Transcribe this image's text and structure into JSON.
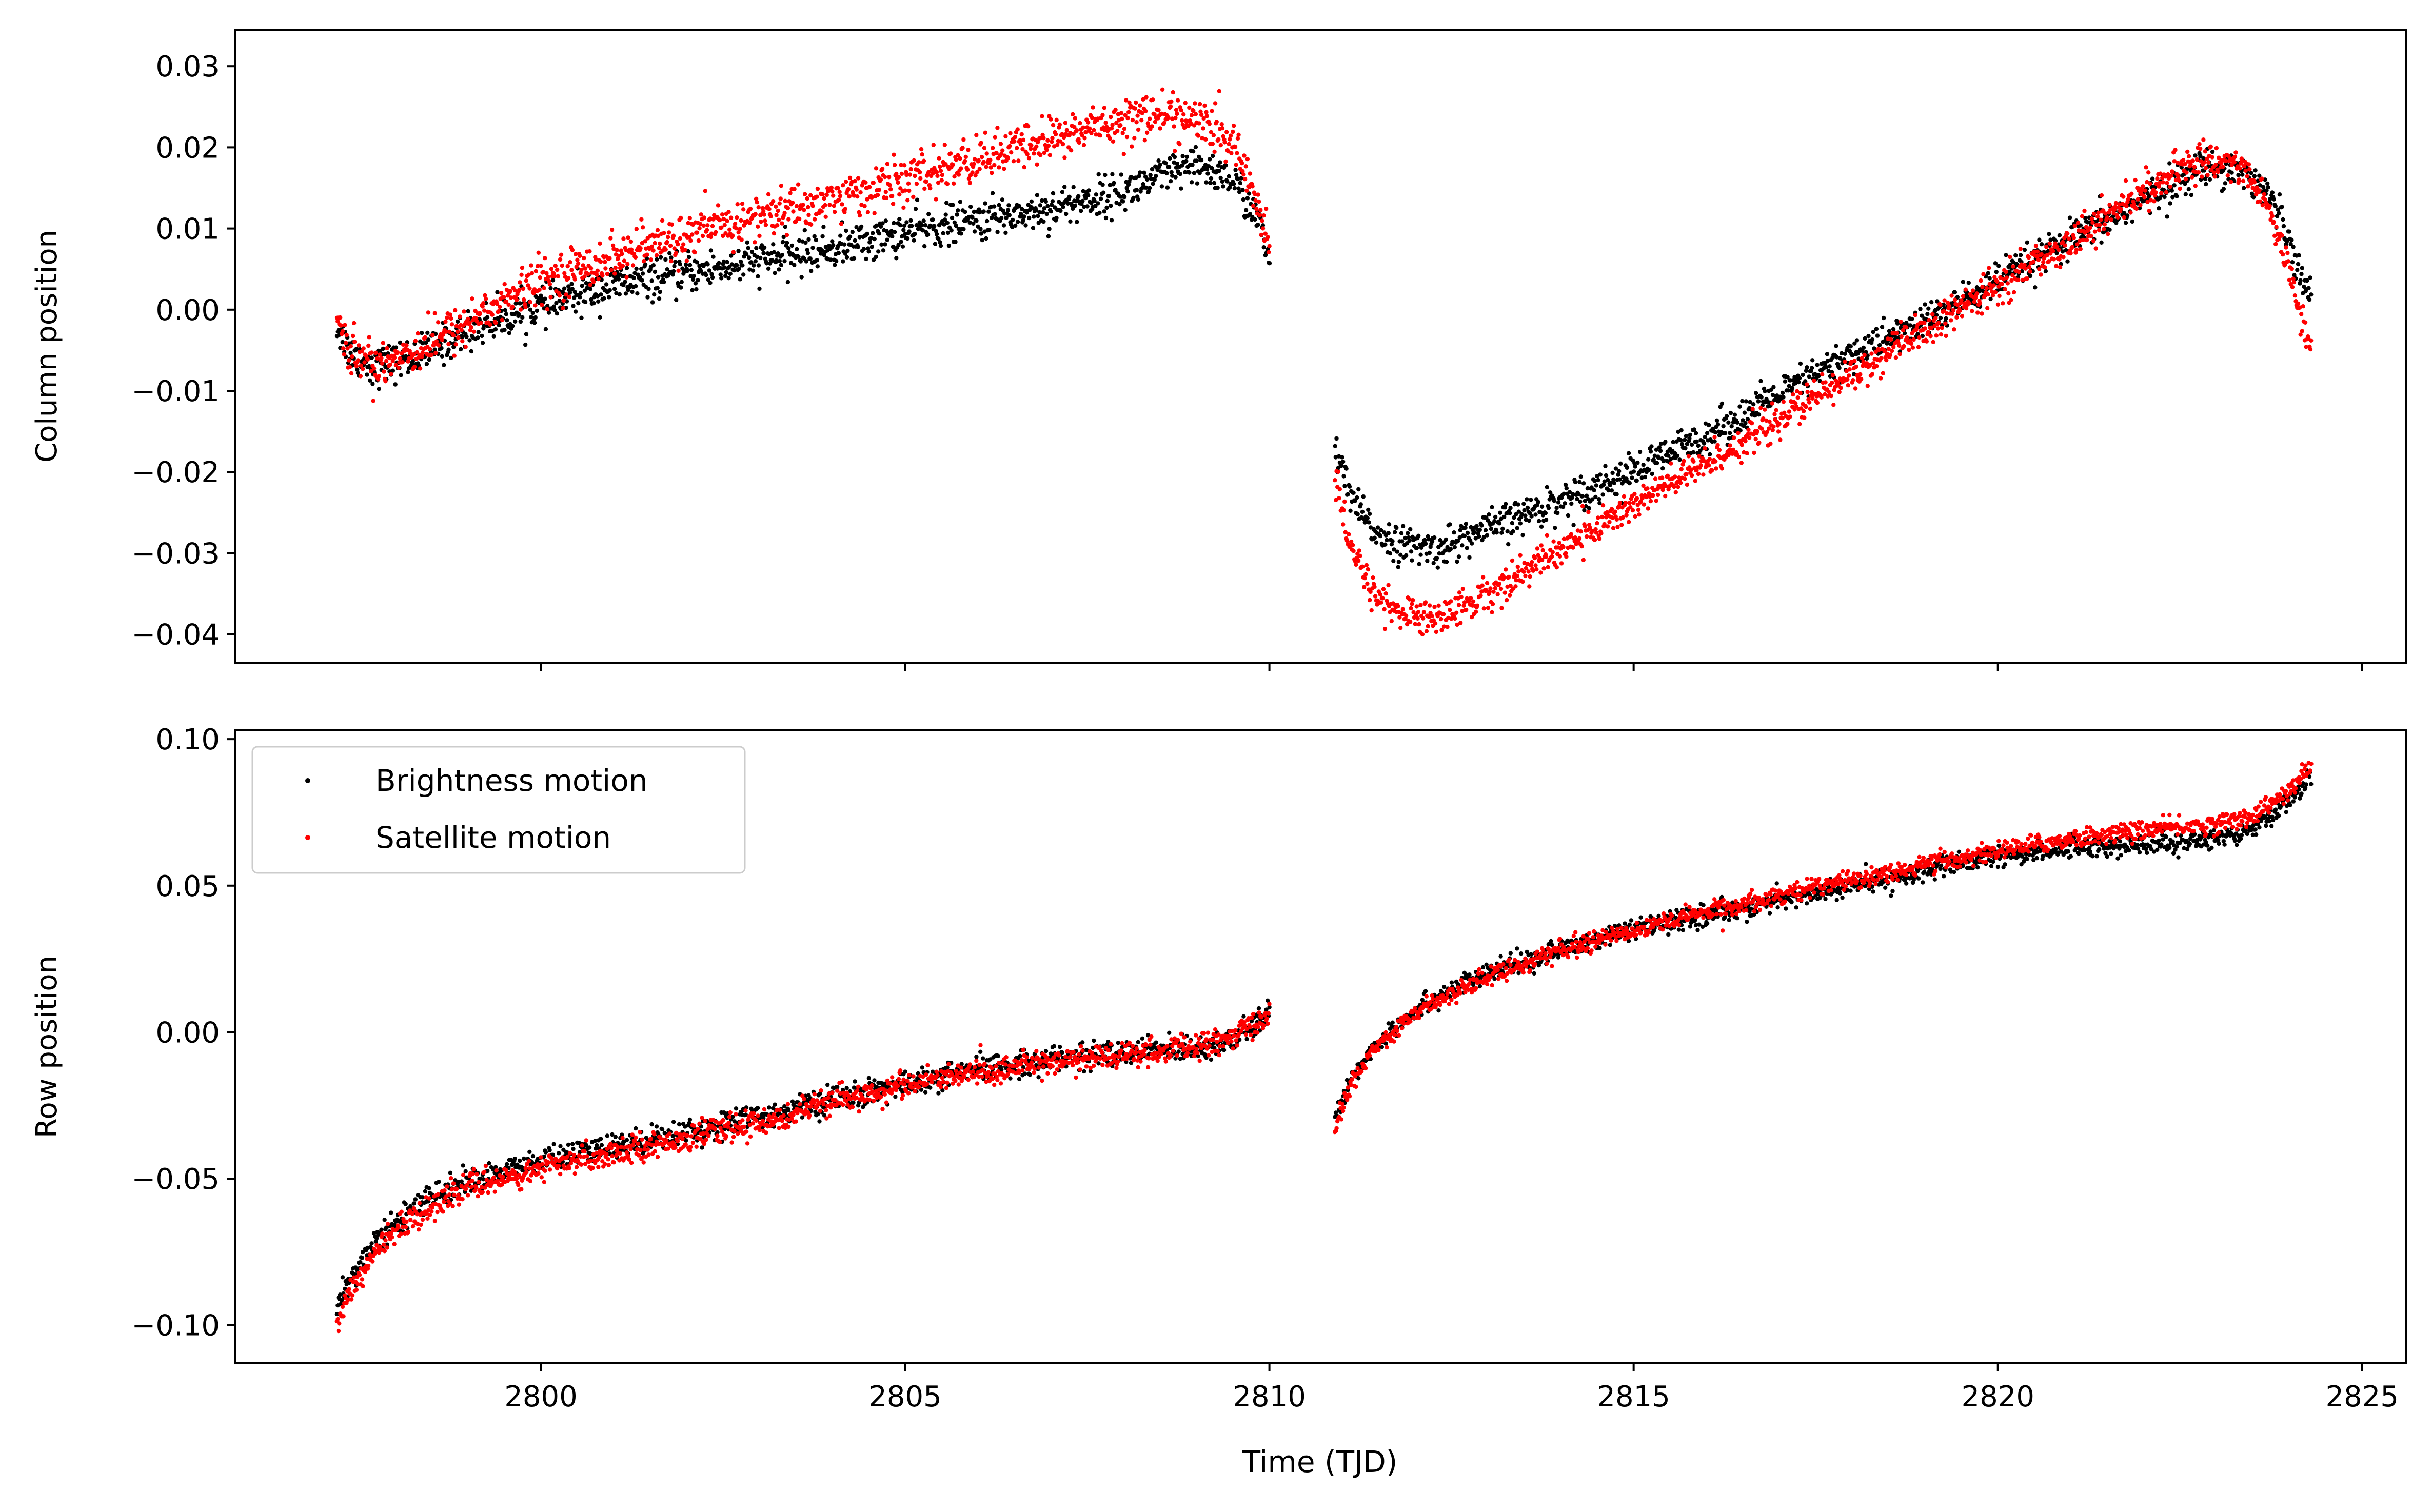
{
  "figure": {
    "xlabel": "Time (TJD)"
  },
  "legend": {
    "location": "upper left of bottom panel",
    "entries": [
      "Brightness motion",
      "Satellite motion"
    ]
  },
  "colors": {
    "brightness": "#000000",
    "satellite": "#ff0000"
  },
  "chart_data": [
    {
      "type": "scatter",
      "panel": "top",
      "ylabel": "Column position",
      "xlim": [
        2795.8,
        2825.6
      ],
      "ylim": [
        -0.0435,
        0.0345
      ],
      "xticks": [
        2800,
        2805,
        2810,
        2815,
        2820,
        2825
      ],
      "xtick_labels_shown": false,
      "yticks": [
        -0.04,
        -0.03,
        -0.02,
        -0.01,
        0.0,
        0.01,
        0.02,
        0.03
      ],
      "ytick_labels": [
        "−0.04",
        "−0.03",
        "−0.02",
        "−0.01",
        "0.00",
        "0.01",
        "0.02",
        "0.03"
      ],
      "grid": false,
      "series": [
        {
          "name": "Brightness motion",
          "color": "#000000",
          "segments": [
            {
              "x": [
                2797.2,
                2797.4,
                2797.7,
                2798.0,
                2798.5,
                2799.0,
                2800.0,
                2801.0,
                2802.0,
                2803.0,
                2804.0,
                2805.0,
                2806.0,
                2807.0,
                2808.0,
                2808.7,
                2809.1,
                2809.5,
                2809.8,
                2810.0
              ],
              "y": [
                -0.002,
                -0.0055,
                -0.007,
                -0.0065,
                -0.005,
                -0.0025,
                0.0005,
                0.003,
                0.0045,
                0.006,
                0.0075,
                0.0095,
                0.011,
                0.0125,
                0.0145,
                0.017,
                0.0175,
                0.016,
                0.012,
                0.006
              ],
              "spread": 0.0012
            },
            {
              "x": [
                2810.9,
                2811.1,
                2811.4,
                2811.8,
                2812.3,
                2813.0,
                2814.0,
                2815.0,
                2816.0,
                2817.0,
                2818.0,
                2819.0,
                2820.0,
                2821.0,
                2822.0,
                2822.8,
                2823.3,
                2823.7,
                2824.0,
                2824.3
              ],
              "y": [
                -0.017,
                -0.023,
                -0.027,
                -0.029,
                -0.0295,
                -0.027,
                -0.0235,
                -0.02,
                -0.0155,
                -0.0105,
                -0.0055,
                -0.0015,
                0.0035,
                0.0085,
                0.0135,
                0.0175,
                0.0175,
                0.0145,
                0.009,
                0.001
              ],
              "spread": 0.0011
            }
          ]
        },
        {
          "name": "Satellite motion",
          "color": "#ff0000",
          "segments": [
            {
              "x": [
                2797.2,
                2797.4,
                2797.7,
                2798.0,
                2798.5,
                2799.0,
                2800.0,
                2801.0,
                2802.0,
                2803.0,
                2804.0,
                2805.0,
                2806.0,
                2807.0,
                2808.0,
                2808.5,
                2809.0,
                2809.5,
                2809.8,
                2810.0
              ],
              "y": [
                -0.001,
                -0.0055,
                -0.0065,
                -0.006,
                -0.004,
                -0.0015,
                0.0035,
                0.0065,
                0.009,
                0.0115,
                0.0135,
                0.016,
                0.0185,
                0.021,
                0.0235,
                0.024,
                0.0235,
                0.0205,
                0.0145,
                0.0075
              ],
              "spread": 0.0014
            },
            {
              "x": [
                2810.9,
                2811.1,
                2811.4,
                2811.8,
                2812.3,
                2813.0,
                2814.0,
                2815.0,
                2816.0,
                2817.0,
                2818.0,
                2819.0,
                2820.0,
                2821.0,
                2822.0,
                2822.8,
                2823.3,
                2823.7,
                2824.0,
                2824.3
              ],
              "y": [
                -0.021,
                -0.029,
                -0.0345,
                -0.0375,
                -0.038,
                -0.035,
                -0.0295,
                -0.024,
                -0.019,
                -0.0135,
                -0.008,
                -0.0025,
                0.003,
                0.0085,
                0.0145,
                0.0185,
                0.018,
                0.013,
                0.005,
                -0.0055
              ],
              "spread": 0.0011
            }
          ]
        }
      ]
    },
    {
      "type": "scatter",
      "panel": "bottom",
      "ylabel": "Row position",
      "xlim": [
        2795.8,
        2825.6
      ],
      "ylim": [
        -0.113,
        0.103
      ],
      "xticks": [
        2800,
        2805,
        2810,
        2815,
        2820,
        2825
      ],
      "xtick_labels": [
        "2800",
        "2805",
        "2810",
        "2815",
        "2820",
        "2825"
      ],
      "yticks": [
        -0.1,
        -0.05,
        0.0,
        0.05,
        0.1
      ],
      "ytick_labels": [
        "−0.10",
        "−0.05",
        "0.00",
        "0.05",
        "0.10"
      ],
      "grid": false,
      "series": [
        {
          "name": "Brightness motion",
          "color": "#000000",
          "segments": [
            {
              "x": [
                2797.2,
                2797.4,
                2797.7,
                2798.0,
                2798.5,
                2799.0,
                2800.0,
                2801.0,
                2802.0,
                2803.0,
                2804.0,
                2805.0,
                2806.0,
                2807.0,
                2808.0,
                2809.0,
                2809.5,
                2810.0
              ],
              "y": [
                -0.093,
                -0.083,
                -0.073,
                -0.065,
                -0.056,
                -0.051,
                -0.044,
                -0.039,
                -0.034,
                -0.029,
                -0.023,
                -0.018,
                -0.013,
                -0.009,
                -0.007,
                -0.005,
                -0.003,
                0.006
              ],
              "spread": 0.0022
            },
            {
              "x": [
                2810.9,
                2811.1,
                2811.4,
                2811.8,
                2812.3,
                2813.0,
                2814.0,
                2815.0,
                2816.0,
                2817.0,
                2818.0,
                2819.0,
                2820.0,
                2821.0,
                2822.0,
                2823.0,
                2823.5,
                2824.0,
                2824.3
              ],
              "y": [
                -0.03,
                -0.017,
                -0.006,
                0.004,
                0.012,
                0.02,
                0.028,
                0.035,
                0.04,
                0.045,
                0.05,
                0.055,
                0.06,
                0.063,
                0.064,
                0.066,
                0.07,
                0.079,
                0.088
              ],
              "spread": 0.0018
            }
          ]
        },
        {
          "name": "Satellite motion",
          "color": "#ff0000",
          "segments": [
            {
              "x": [
                2797.2,
                2797.4,
                2797.7,
                2798.0,
                2798.5,
                2799.0,
                2800.0,
                2801.0,
                2802.0,
                2803.0,
                2804.0,
                2805.0,
                2806.0,
                2807.0,
                2808.0,
                2809.0,
                2809.5,
                2810.0
              ],
              "y": [
                -0.1,
                -0.088,
                -0.076,
                -0.068,
                -0.059,
                -0.053,
                -0.047,
                -0.041,
                -0.036,
                -0.031,
                -0.024,
                -0.018,
                -0.014,
                -0.01,
                -0.008,
                -0.005,
                -0.002,
                0.006
              ],
              "spread": 0.0022
            },
            {
              "x": [
                2810.9,
                2811.1,
                2811.4,
                2811.8,
                2812.3,
                2813.0,
                2814.0,
                2815.0,
                2816.0,
                2817.0,
                2818.0,
                2819.0,
                2820.0,
                2821.0,
                2822.0,
                2823.0,
                2823.5,
                2824.0,
                2824.3
              ],
              "y": [
                -0.033,
                -0.019,
                -0.007,
                0.003,
                0.011,
                0.019,
                0.028,
                0.035,
                0.041,
                0.047,
                0.052,
                0.057,
                0.062,
                0.066,
                0.069,
                0.071,
                0.074,
                0.082,
                0.091
              ],
              "spread": 0.0016
            }
          ]
        }
      ]
    }
  ]
}
